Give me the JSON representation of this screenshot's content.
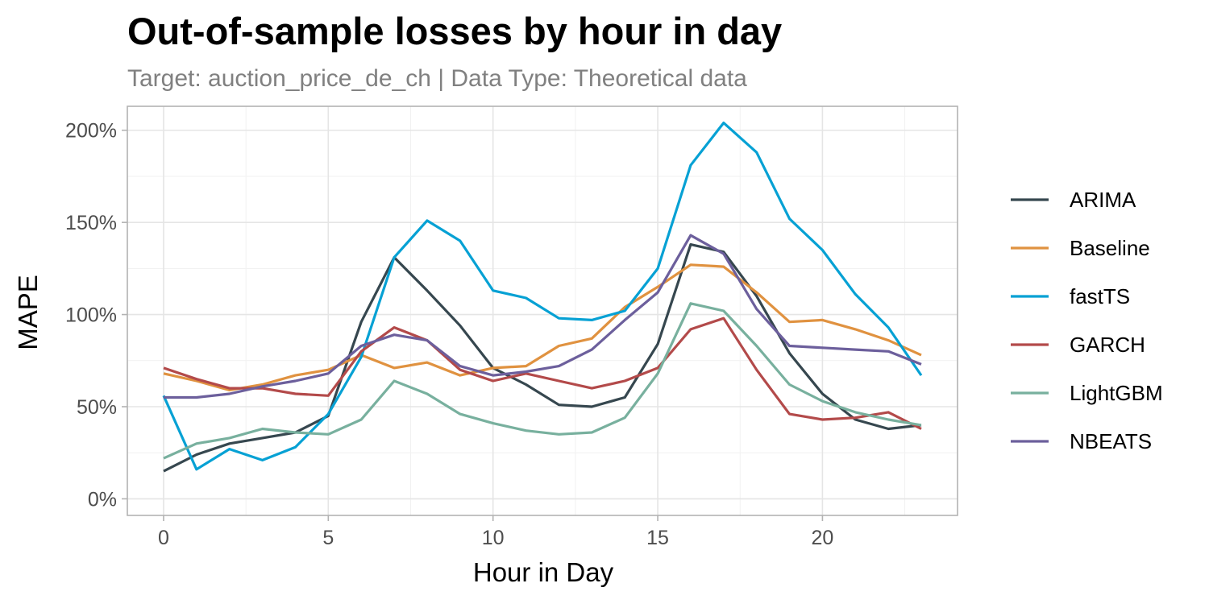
{
  "chart_data": {
    "type": "line",
    "title": "Out-of-sample losses by hour in day",
    "subtitle": "Target: auction_price_de_ch | Data Type: Theoretical data",
    "xlabel": "Hour in Day",
    "ylabel": "MAPE",
    "xlim": [
      -1.1,
      24.1
    ],
    "ylim": [
      -0.09,
      2.13
    ],
    "x_ticks": [
      0,
      5,
      10,
      15,
      20
    ],
    "x_tick_labels": [
      "0",
      "5",
      "10",
      "15",
      "20"
    ],
    "y_ticks": [
      0,
      0.5,
      1.0,
      1.5,
      2.0
    ],
    "y_tick_labels": [
      "0%",
      "50%",
      "100%",
      "150%",
      "200%"
    ],
    "grid": true,
    "legend_position": "right",
    "x": [
      0,
      1,
      2,
      3,
      4,
      5,
      6,
      7,
      8,
      9,
      10,
      11,
      12,
      13,
      14,
      15,
      16,
      17,
      18,
      19,
      20,
      21,
      22,
      23
    ],
    "series": [
      {
        "name": "ARIMA",
        "color": "#36474f",
        "values": [
          0.15,
          0.24,
          0.3,
          0.33,
          0.36,
          0.45,
          0.96,
          1.31,
          1.13,
          0.94,
          0.71,
          0.62,
          0.51,
          0.5,
          0.55,
          0.84,
          1.38,
          1.34,
          1.1,
          0.79,
          0.57,
          0.43,
          0.38,
          0.4
        ]
      },
      {
        "name": "Baseline",
        "color": "#e09240",
        "values": [
          0.68,
          0.64,
          0.59,
          0.62,
          0.67,
          0.7,
          0.78,
          0.71,
          0.74,
          0.67,
          0.71,
          0.72,
          0.83,
          0.87,
          1.04,
          1.15,
          1.27,
          1.26,
          1.12,
          0.96,
          0.97,
          0.92,
          0.86,
          0.78
        ]
      },
      {
        "name": "fastTS",
        "color": "#06a1d4",
        "values": [
          0.56,
          0.16,
          0.27,
          0.21,
          0.28,
          0.46,
          0.77,
          1.31,
          1.51,
          1.4,
          1.13,
          1.09,
          0.98,
          0.97,
          1.02,
          1.25,
          1.81,
          2.04,
          1.88,
          1.52,
          1.35,
          1.11,
          0.93,
          0.67
        ]
      },
      {
        "name": "GARCH",
        "color": "#b34a4a",
        "values": [
          0.71,
          0.65,
          0.6,
          0.6,
          0.57,
          0.56,
          0.8,
          0.93,
          0.86,
          0.7,
          0.64,
          0.68,
          0.64,
          0.6,
          0.64,
          0.71,
          0.92,
          0.98,
          0.7,
          0.46,
          0.43,
          0.44,
          0.47,
          0.38
        ]
      },
      {
        "name": "LightGBM",
        "color": "#78b09e",
        "values": [
          0.22,
          0.3,
          0.33,
          0.38,
          0.36,
          0.35,
          0.43,
          0.64,
          0.57,
          0.46,
          0.41,
          0.37,
          0.35,
          0.36,
          0.44,
          0.68,
          1.06,
          1.02,
          0.83,
          0.62,
          0.53,
          0.47,
          0.43,
          0.4
        ]
      },
      {
        "name": "NBEATS",
        "color": "#6c5f9c",
        "values": [
          0.55,
          0.55,
          0.57,
          0.61,
          0.64,
          0.68,
          0.83,
          0.89,
          0.86,
          0.72,
          0.67,
          0.69,
          0.72,
          0.81,
          0.97,
          1.12,
          1.43,
          1.33,
          1.03,
          0.83,
          0.82,
          0.81,
          0.8,
          0.73
        ]
      }
    ]
  }
}
